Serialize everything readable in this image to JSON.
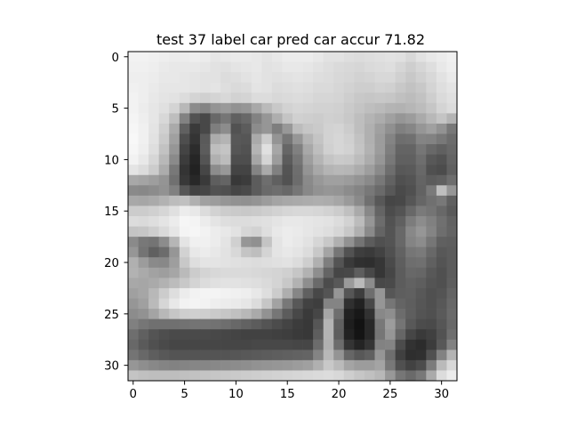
{
  "chart_data": {
    "type": "heatmap",
    "title": "test 37 label car pred car accur 71.82",
    "xlabel": "",
    "ylabel": "",
    "colormap": "gray",
    "xlim": [
      -0.5,
      31.5
    ],
    "ylim": [
      31.5,
      -0.5
    ],
    "x_ticks": [
      0,
      5,
      10,
      15,
      20,
      25,
      30
    ],
    "y_ticks": [
      0,
      5,
      10,
      15,
      20,
      25,
      30
    ],
    "x_tick_labels": [
      "0",
      "5",
      "10",
      "15",
      "20",
      "25",
      "30"
    ],
    "y_tick_labels": [
      "0",
      "5",
      "10",
      "15",
      "20",
      "25",
      "30"
    ],
    "grid": false,
    "rows": 32,
    "cols": 32,
    "values": [
      [
        242,
        242,
        240,
        238,
        236,
        236,
        238,
        236,
        230,
        232,
        234,
        234,
        232,
        228,
        232,
        236,
        236,
        236,
        232,
        226,
        226,
        222,
        220,
        222,
        224,
        226,
        224,
        216,
        226,
        232,
        236,
        240
      ],
      [
        240,
        240,
        238,
        234,
        232,
        232,
        232,
        230,
        226,
        224,
        228,
        230,
        232,
        226,
        228,
        232,
        232,
        230,
        226,
        222,
        218,
        216,
        214,
        218,
        220,
        222,
        214,
        206,
        214,
        222,
        232,
        238
      ],
      [
        238,
        238,
        236,
        232,
        232,
        230,
        228,
        226,
        226,
        220,
        222,
        226,
        230,
        226,
        224,
        226,
        228,
        226,
        222,
        220,
        216,
        214,
        210,
        212,
        216,
        216,
        208,
        200,
        208,
        216,
        226,
        234
      ],
      [
        240,
        238,
        234,
        230,
        230,
        230,
        228,
        226,
        228,
        222,
        218,
        220,
        228,
        226,
        220,
        222,
        224,
        222,
        218,
        218,
        214,
        210,
        206,
        206,
        210,
        208,
        200,
        194,
        200,
        212,
        222,
        228
      ],
      [
        242,
        238,
        232,
        228,
        226,
        220,
        212,
        208,
        212,
        216,
        210,
        212,
        220,
        220,
        216,
        218,
        220,
        218,
        214,
        214,
        212,
        206,
        200,
        198,
        200,
        198,
        192,
        188,
        194,
        206,
        218,
        224
      ],
      [
        242,
        236,
        230,
        224,
        212,
        184,
        140,
        132,
        148,
        154,
        146,
        150,
        168,
        186,
        200,
        210,
        214,
        212,
        210,
        210,
        208,
        202,
        196,
        190,
        186,
        180,
        178,
        182,
        188,
        198,
        212,
        220
      ],
      [
        244,
        238,
        230,
        216,
        190,
        130,
        82,
        72,
        104,
        118,
        96,
        104,
        130,
        150,
        174,
        196,
        208,
        206,
        204,
        208,
        206,
        200,
        190,
        180,
        172,
        160,
        150,
        156,
        170,
        184,
        196,
        180
      ],
      [
        246,
        240,
        228,
        208,
        170,
        96,
        58,
        72,
        126,
        140,
        82,
        92,
        140,
        150,
        126,
        152,
        188,
        198,
        202,
        210,
        212,
        204,
        190,
        176,
        160,
        144,
        128,
        134,
        150,
        160,
        146,
        120
      ],
      [
        248,
        240,
        226,
        202,
        160,
        78,
        52,
        90,
        172,
        180,
        88,
        86,
        170,
        204,
        148,
        118,
        150,
        180,
        196,
        210,
        214,
        208,
        194,
        176,
        156,
        132,
        110,
        112,
        132,
        130,
        120,
        108
      ],
      [
        246,
        238,
        222,
        194,
        150,
        68,
        44,
        92,
        190,
        196,
        86,
        82,
        180,
        224,
        166,
        102,
        128,
        168,
        190,
        208,
        214,
        210,
        196,
        178,
        156,
        126,
        100,
        100,
        118,
        104,
        96,
        104
      ],
      [
        242,
        232,
        214,
        184,
        138,
        60,
        38,
        84,
        176,
        188,
        78,
        78,
        166,
        212,
        156,
        92,
        118,
        158,
        180,
        196,
        202,
        200,
        188,
        172,
        150,
        120,
        96,
        96,
        110,
        88,
        82,
        100
      ],
      [
        228,
        220,
        204,
        172,
        120,
        52,
        34,
        70,
        140,
        152,
        68,
        68,
        132,
        170,
        128,
        84,
        110,
        148,
        168,
        180,
        184,
        182,
        172,
        158,
        138,
        110,
        88,
        90,
        104,
        80,
        76,
        96
      ],
      [
        168,
        164,
        158,
        148,
        112,
        56,
        40,
        58,
        94,
        100,
        56,
        60,
        92,
        110,
        96,
        82,
        108,
        138,
        152,
        160,
        160,
        156,
        148,
        138,
        120,
        98,
        80,
        84,
        100,
        92,
        96,
        110
      ],
      [
        138,
        136,
        140,
        146,
        128,
        86,
        66,
        70,
        82,
        80,
        70,
        74,
        92,
        106,
        110,
        104,
        118,
        136,
        146,
        150,
        148,
        140,
        132,
        120,
        106,
        88,
        74,
        80,
        98,
        122,
        190,
        150
      ],
      [
        168,
        166,
        170,
        178,
        188,
        192,
        176,
        160,
        156,
        150,
        146,
        144,
        148,
        156,
        164,
        168,
        170,
        172,
        174,
        172,
        166,
        154,
        138,
        112,
        88,
        70,
        72,
        86,
        102,
        112,
        120,
        96
      ],
      [
        204,
        204,
        208,
        214,
        224,
        236,
        232,
        220,
        210,
        204,
        202,
        200,
        202,
        206,
        210,
        214,
        216,
        216,
        214,
        210,
        204,
        192,
        170,
        136,
        100,
        76,
        84,
        104,
        122,
        116,
        104,
        90
      ],
      [
        220,
        218,
        222,
        228,
        236,
        246,
        244,
        236,
        228,
        222,
        220,
        220,
        222,
        224,
        228,
        232,
        232,
        230,
        228,
        226,
        220,
        210,
        188,
        150,
        108,
        82,
        96,
        124,
        140,
        128,
        112,
        98
      ],
      [
        196,
        198,
        206,
        218,
        230,
        244,
        246,
        242,
        236,
        232,
        226,
        214,
        210,
        222,
        232,
        236,
        234,
        230,
        226,
        222,
        214,
        200,
        176,
        138,
        100,
        84,
        104,
        136,
        150,
        132,
        110,
        100
      ],
      [
        138,
        120,
        116,
        140,
        182,
        228,
        240,
        240,
        236,
        228,
        208,
        150,
        144,
        196,
        228,
        236,
        232,
        226,
        214,
        200,
        176,
        146,
        116,
        92,
        80,
        84,
        104,
        132,
        140,
        118,
        96,
        94
      ],
      [
        150,
        116,
        96,
        108,
        150,
        210,
        232,
        236,
        232,
        226,
        216,
        196,
        190,
        212,
        228,
        232,
        228,
        220,
        200,
        164,
        118,
        82,
        62,
        58,
        66,
        80,
        98,
        118,
        122,
        104,
        88,
        92
      ],
      [
        176,
        156,
        138,
        136,
        158,
        200,
        222,
        228,
        228,
        226,
        224,
        222,
        220,
        222,
        224,
        226,
        220,
        206,
        176,
        126,
        84,
        58,
        48,
        46,
        54,
        74,
        94,
        110,
        112,
        96,
        84,
        92
      ],
      [
        178,
        170,
        162,
        158,
        166,
        186,
        204,
        212,
        216,
        218,
        218,
        218,
        216,
        214,
        212,
        208,
        198,
        178,
        142,
        100,
        70,
        72,
        94,
        72,
        54,
        70,
        92,
        104,
        102,
        88,
        80,
        92
      ],
      [
        168,
        166,
        170,
        178,
        188,
        200,
        212,
        220,
        224,
        226,
        226,
        224,
        222,
        218,
        212,
        200,
        178,
        142,
        106,
        76,
        88,
        154,
        186,
        140,
        72,
        74,
        92,
        98,
        94,
        84,
        80,
        94
      ],
      [
        160,
        166,
        184,
        204,
        222,
        236,
        242,
        244,
        244,
        242,
        240,
        238,
        232,
        222,
        204,
        174,
        134,
        96,
        72,
        84,
        150,
        86,
        62,
        110,
        150,
        86,
        94,
        96,
        88,
        80,
        84,
        100
      ],
      [
        150,
        160,
        186,
        214,
        232,
        242,
        244,
        242,
        238,
        236,
        234,
        230,
        220,
        198,
        162,
        120,
        88,
        66,
        62,
        132,
        132,
        48,
        34,
        72,
        150,
        118,
        100,
        94,
        86,
        80,
        88,
        104
      ],
      [
        140,
        146,
        164,
        184,
        198,
        206,
        208,
        206,
        202,
        198,
        192,
        184,
        170,
        146,
        118,
        92,
        72,
        58,
        70,
        166,
        110,
        34,
        24,
        50,
        136,
        142,
        108,
        94,
        84,
        80,
        90,
        106
      ],
      [
        128,
        118,
        112,
        112,
        112,
        114,
        116,
        116,
        114,
        110,
        104,
        98,
        92,
        84,
        76,
        68,
        60,
        56,
        86,
        180,
        96,
        30,
        18,
        40,
        120,
        156,
        116,
        88,
        76,
        74,
        86,
        104
      ],
      [
        110,
        96,
        84,
        78,
        74,
        74,
        74,
        74,
        72,
        70,
        68,
        66,
        66,
        66,
        64,
        62,
        58,
        56,
        94,
        180,
        94,
        34,
        20,
        40,
        118,
        150,
        102,
        70,
        58,
        64,
        82,
        110
      ],
      [
        104,
        90,
        80,
        74,
        70,
        70,
        70,
        70,
        70,
        70,
        70,
        70,
        72,
        72,
        72,
        72,
        70,
        70,
        108,
        176,
        108,
        52,
        36,
        52,
        130,
        132,
        76,
        50,
        44,
        60,
        88,
        130
      ],
      [
        116,
        104,
        94,
        88,
        84,
        84,
        84,
        84,
        84,
        84,
        86,
        88,
        90,
        92,
        94,
        96,
        98,
        100,
        132,
        184,
        148,
        102,
        88,
        96,
        150,
        110,
        64,
        46,
        48,
        80,
        130,
        180
      ],
      [
        150,
        142,
        136,
        132,
        130,
        132,
        134,
        134,
        136,
        138,
        140,
        142,
        146,
        148,
        150,
        152,
        156,
        160,
        176,
        200,
        186,
        164,
        156,
        156,
        164,
        120,
        80,
        66,
        76,
        124,
        186,
        216
      ],
      [
        196,
        192,
        190,
        190,
        190,
        192,
        194,
        196,
        198,
        200,
        202,
        204,
        206,
        208,
        210,
        212,
        214,
        216,
        218,
        220,
        216,
        206,
        198,
        192,
        184,
        152,
        118,
        106,
        120,
        170,
        220,
        236
      ]
    ]
  }
}
